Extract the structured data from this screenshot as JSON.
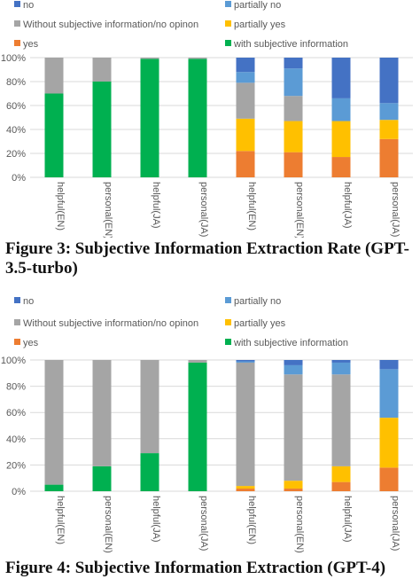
{
  "colors": {
    "no": "#4472C4",
    "partially_no": "#5B9BD5",
    "without": "#A5A5A5",
    "partially_yes": "#FFC000",
    "yes": "#ED7D31",
    "with": "#00B050"
  },
  "captions": {
    "fig3": "Figure 3: Subjective Information Extraction Rate (GPT-3.5-turbo)",
    "fig4": "Figure 4: Subjective Information Extraction (GPT-4)"
  },
  "chart_data": [
    {
      "type": "bar",
      "stacked": true,
      "ylim": [
        0,
        100
      ],
      "yticks": [
        "0%",
        "20%",
        "40%",
        "60%",
        "80%",
        "100%"
      ],
      "legend": [
        "no",
        "partially no",
        "Without subjective information/no opinon",
        "partially yes",
        "yes",
        "with subjective information"
      ],
      "categories": [
        "helpful(EN)",
        "personal(EN)",
        "helpful(JA)",
        "personal(JA)",
        "helpful(EN)",
        "personal(EN)",
        "helpful(JA)",
        "personal(JA)"
      ],
      "series": [
        {
          "name": "with subjective information",
          "key": "with",
          "values": [
            70,
            80,
            99,
            99,
            0,
            0,
            0,
            0
          ]
        },
        {
          "name": "yes",
          "key": "yes",
          "values": [
            0,
            0,
            0,
            0,
            22,
            21,
            17,
            32
          ]
        },
        {
          "name": "partially yes",
          "key": "partially_yes",
          "values": [
            0,
            0,
            0,
            0,
            27,
            26,
            30,
            16
          ]
        },
        {
          "name": "Without subjective information/no opinon",
          "key": "without",
          "values": [
            30,
            20,
            1,
            1,
            30,
            21,
            0,
            0
          ]
        },
        {
          "name": "partially no",
          "key": "partially_no",
          "values": [
            0,
            0,
            0,
            0,
            9,
            23,
            19,
            14
          ]
        },
        {
          "name": "no",
          "key": "no",
          "values": [
            0,
            0,
            0,
            0,
            12,
            9,
            34,
            38
          ]
        }
      ]
    },
    {
      "type": "bar",
      "stacked": true,
      "ylim": [
        0,
        100
      ],
      "yticks": [
        "0%",
        "20%",
        "40%",
        "60%",
        "80%",
        "100%"
      ],
      "legend": [
        "no",
        "partially no",
        "Without subjective information/no opinon",
        "partially yes",
        "yes",
        "with subjective information"
      ],
      "categories": [
        "helpful(EN)",
        "personal(EN)",
        "helpful(JA)",
        "personal(JA)",
        "helpful(EN)",
        "personal(EN)",
        "helpful(JA)",
        "personal(JA)"
      ],
      "series": [
        {
          "name": "with subjective information",
          "key": "with",
          "values": [
            5,
            19,
            29,
            98,
            0,
            0,
            0,
            0
          ]
        },
        {
          "name": "yes",
          "key": "yes",
          "values": [
            0,
            0,
            0,
            0,
            2,
            2,
            7,
            18
          ]
        },
        {
          "name": "partially yes",
          "key": "partially_yes",
          "values": [
            0,
            0,
            0,
            0,
            2,
            6,
            12,
            38
          ]
        },
        {
          "name": "Without subjective information/no opinon",
          "key": "without",
          "values": [
            95,
            81,
            71,
            2,
            94,
            81,
            70,
            0
          ]
        },
        {
          "name": "partially no",
          "key": "partially_no",
          "values": [
            0,
            0,
            0,
            0,
            1,
            7,
            9,
            37
          ]
        },
        {
          "name": "no",
          "key": "no",
          "values": [
            0,
            0,
            0,
            0,
            1,
            4,
            2,
            7
          ]
        }
      ]
    }
  ]
}
